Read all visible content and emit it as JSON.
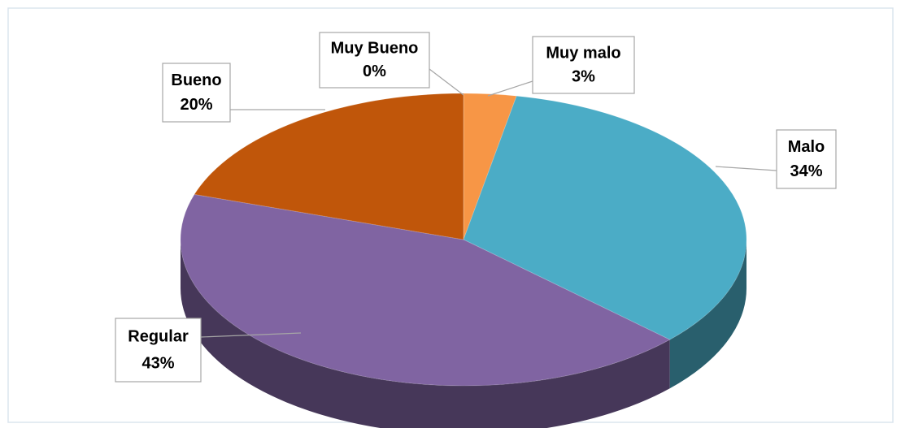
{
  "chart_data": {
    "type": "pie3d",
    "categories": [
      "Muy malo",
      "Malo",
      "Regular",
      "Bueno",
      "Muy Bueno"
    ],
    "values": [
      3,
      34,
      43,
      20,
      0
    ],
    "value_labels": [
      "3%",
      "34%",
      "43%",
      "20%",
      "0%"
    ],
    "colors": [
      "#f79646",
      "#4bacc6",
      "#8064a2",
      "#c0560a",
      "#9bbb59"
    ]
  }
}
